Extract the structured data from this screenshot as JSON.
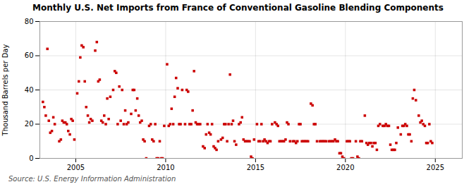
{
  "chart_data": {
    "type": "scatter",
    "title": "Monthly U.S. Net Imports from France of Conventional Gasoline Blending Components",
    "ylabel": "Thousand Barrels per Day",
    "source": "Source: U.S. Energy Information Administration",
    "color": "#cc0000",
    "marker": "square",
    "grid": true,
    "xlim": [
      2003.0,
      2026.5
    ],
    "xticks": [
      2005,
      2010,
      2015,
      2020,
      2025
    ],
    "ylim": [
      0,
      80
    ],
    "yticks": [
      0,
      20,
      40,
      60,
      80
    ],
    "x": [
      2003.17,
      2003.25,
      2003.33,
      2003.42,
      2003.5,
      2003.58,
      2003.67,
      2003.75,
      2003.83,
      2004.08,
      2004.17,
      2004.25,
      2004.33,
      2004.42,
      2004.5,
      2004.58,
      2004.67,
      2004.75,
      2004.83,
      2004.92,
      2005.08,
      2005.17,
      2005.25,
      2005.33,
      2005.42,
      2005.5,
      2005.58,
      2005.67,
      2005.75,
      2005.83,
      2005.92,
      2006.08,
      2006.17,
      2006.25,
      2006.33,
      2006.42,
      2006.5,
      2006.58,
      2006.67,
      2006.75,
      2006.83,
      2006.92,
      2007.08,
      2007.17,
      2007.25,
      2007.33,
      2007.42,
      2007.5,
      2007.58,
      2007.67,
      2007.75,
      2007.83,
      2007.92,
      2008.08,
      2008.17,
      2008.25,
      2008.33,
      2008.42,
      2008.5,
      2008.58,
      2008.67,
      2008.75,
      2008.83,
      2008.92,
      2009.08,
      2009.17,
      2009.25,
      2009.33,
      2009.42,
      2009.5,
      2009.58,
      2009.67,
      2009.75,
      2009.83,
      2009.92,
      2010.08,
      2010.17,
      2010.25,
      2010.33,
      2010.42,
      2010.5,
      2010.58,
      2010.67,
      2010.75,
      2010.83,
      2010.92,
      2011.08,
      2011.17,
      2011.25,
      2011.33,
      2011.42,
      2011.5,
      2011.58,
      2011.67,
      2011.75,
      2011.83,
      2011.92,
      2012.08,
      2012.17,
      2012.25,
      2012.33,
      2012.42,
      2012.5,
      2012.58,
      2012.67,
      2012.75,
      2012.83,
      2012.92,
      2013.08,
      2013.17,
      2013.25,
      2013.33,
      2013.42,
      2013.5,
      2013.58,
      2013.67,
      2013.75,
      2013.83,
      2013.92,
      2014.08,
      2014.17,
      2014.25,
      2014.33,
      2014.42,
      2014.5,
      2014.58,
      2014.67,
      2014.75,
      2014.83,
      2014.92,
      2015.08,
      2015.17,
      2015.25,
      2015.33,
      2015.42,
      2015.5,
      2015.58,
      2015.67,
      2015.75,
      2015.83,
      2015.92,
      2016.08,
      2016.17,
      2016.25,
      2016.33,
      2016.42,
      2016.5,
      2016.58,
      2016.67,
      2016.75,
      2016.83,
      2016.92,
      2017.08,
      2017.17,
      2017.25,
      2017.33,
      2017.42,
      2017.5,
      2017.58,
      2017.67,
      2017.75,
      2017.83,
      2017.92,
      2018.08,
      2018.17,
      2018.25,
      2018.33,
      2018.42,
      2018.58,
      2018.67,
      2018.75,
      2018.83,
      2018.92,
      2019.08,
      2019.17,
      2019.25,
      2019.33,
      2019.42,
      2019.5,
      2019.58,
      2019.67,
      2019.75,
      2019.83,
      2019.92,
      2020.08,
      2020.17,
      2020.25,
      2020.33,
      2020.42,
      2020.58,
      2020.67,
      2020.75,
      2020.83,
      2020.92,
      2021.08,
      2021.17,
      2021.25,
      2021.33,
      2021.42,
      2021.5,
      2021.58,
      2021.67,
      2021.75,
      2021.83,
      2021.92,
      2022.08,
      2022.17,
      2022.25,
      2022.33,
      2022.42,
      2022.5,
      2022.58,
      2022.67,
      2022.75,
      2022.83,
      2022.92,
      2023.08,
      2023.17,
      2023.25,
      2023.33,
      2023.42,
      2023.5,
      2023.58,
      2023.67,
      2023.75,
      2023.83,
      2023.92,
      2024.08,
      2024.17,
      2024.25,
      2024.33,
      2024.42,
      2024.5,
      2024.58,
      2024.67,
      2024.75,
      2024.83
    ],
    "values": [
      33,
      30,
      25,
      64,
      22,
      15,
      16,
      24,
      20,
      10,
      11,
      22,
      21,
      21,
      20,
      16,
      14,
      23,
      22,
      11,
      38,
      45,
      59,
      66,
      65,
      45,
      30,
      25,
      21,
      23,
      22,
      63,
      68,
      45,
      46,
      22,
      21,
      25,
      20,
      35,
      23,
      36,
      40,
      51,
      50,
      20,
      42,
      22,
      40,
      20,
      28,
      20,
      21,
      26,
      40,
      40,
      28,
      35,
      25,
      21,
      22,
      11,
      10,
      0,
      19,
      20,
      11,
      10,
      20,
      0,
      0,
      10,
      0,
      0,
      19,
      55,
      19,
      20,
      29,
      20,
      36,
      47,
      41,
      20,
      20,
      40,
      20,
      40,
      39,
      20,
      20,
      28,
      51,
      21,
      20,
      20,
      20,
      7,
      6,
      14,
      20,
      15,
      14,
      20,
      7,
      6,
      5,
      10,
      11,
      12,
      20,
      20,
      10,
      20,
      49,
      20,
      22,
      10,
      8,
      20,
      21,
      24,
      11,
      10,
      10,
      10,
      10,
      1,
      0,
      11,
      20,
      10,
      10,
      20,
      10,
      11,
      10,
      9,
      10,
      10,
      20,
      21,
      20,
      19,
      10,
      10,
      10,
      10,
      11,
      21,
      20,
      10,
      10,
      10,
      9,
      10,
      20,
      20,
      10,
      10,
      10,
      10,
      10,
      32,
      31,
      20,
      20,
      10,
      10,
      10,
      10,
      10,
      10,
      10,
      10,
      10,
      10,
      11,
      10,
      10,
      3,
      3,
      1,
      0,
      10,
      10,
      10,
      0,
      0,
      10,
      1,
      0,
      10,
      10,
      25,
      9,
      8,
      9,
      9,
      7,
      9,
      9,
      5,
      19,
      20,
      19,
      19,
      20,
      19,
      19,
      8,
      5,
      5,
      5,
      9,
      18,
      14,
      19,
      19,
      20,
      19,
      14,
      14,
      10,
      35,
      40,
      34,
      25,
      21,
      22,
      20,
      19,
      9,
      9,
      20,
      10,
      9
    ]
  }
}
